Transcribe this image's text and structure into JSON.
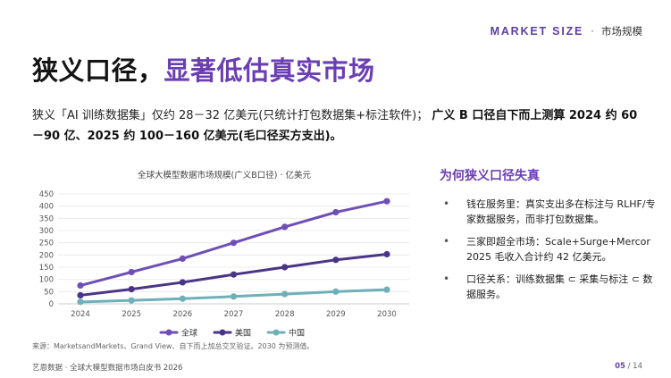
{
  "header": {
    "market_size": "MARKET SIZE",
    "separator": "·",
    "section_cn": "市场规模"
  },
  "title": {
    "part1": "狭义口径，",
    "part2": "显著低估真实市场"
  },
  "intro": {
    "normal": "狭义「AI 训练数据集」仅约 28－32 亿美元(只统计打包数据集+标注软件)；",
    "bold": "广义 B 口径自下而上测算 2024 约 60－90 亿、2025 约 100－160 亿美元(毛口径买方支出)。"
  },
  "chart_data": {
    "type": "line",
    "title": "全球大模型数据市场规模(广义B口径) · 亿美元",
    "xlabel": "",
    "ylabel": "",
    "x": [
      "2024",
      "2025",
      "2026",
      "2027",
      "2028",
      "2029",
      "2030"
    ],
    "ylim": [
      0,
      450
    ],
    "yticks": [
      0,
      50,
      100,
      150,
      200,
      250,
      300,
      350,
      400,
      450
    ],
    "grid": true,
    "legend_position": "bottom",
    "series": [
      {
        "name": "全球",
        "color": "#6f4fb6",
        "values": [
          75,
          130,
          185,
          250,
          315,
          375,
          420
        ]
      },
      {
        "name": "美国",
        "color": "#4a3487",
        "values": [
          35,
          60,
          88,
          120,
          150,
          180,
          203
        ]
      },
      {
        "name": "中国",
        "color": "#6eb0b7",
        "values": [
          8,
          14,
          21,
          30,
          40,
          50,
          58
        ]
      }
    ]
  },
  "source": "来源：MarketsandMarkets、Grand View、自下而上加总交叉验证。2030 为预测值。",
  "side": {
    "title": "为何狭义口径失真",
    "bullet_char": "•",
    "items": [
      "钱在服务里：真实支出多在标注与 RLHF/专家数据服务，而非打包数据集。",
      "三家即超全市场：Scale+Surge+Mercor 2025 毛收入合计约 42 亿美元。",
      "口径关系：训练数据集 ⊂ 采集与标注 ⊂ 数据服务。"
    ]
  },
  "footer": {
    "left": "艺恩数据 · 全球大模型数据市场白皮书 2026",
    "page": "05",
    "total": " / 14"
  }
}
